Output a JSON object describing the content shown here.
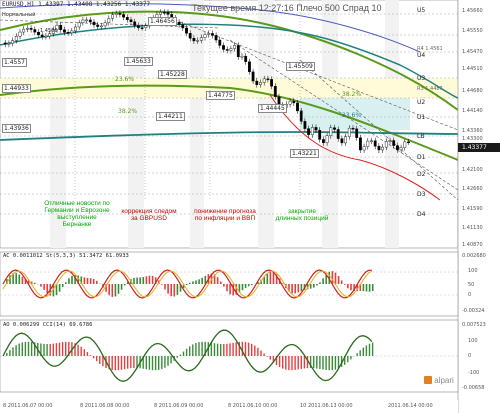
{
  "header": {
    "symbol_line": "EURUSD,H1  1.43397 1.43408 1.43256 1.43377",
    "time_title": "Текущее время 12:27:16 Плечо 500 Спрад 10"
  },
  "left_labels": [
    "Нормальный",
    "1.4566",
    "1.4557",
    "1.44933",
    "1.43936"
  ],
  "chart_boxes": {
    "b1": "1.45633",
    "b2": "1.45228",
    "b3": "1.44775",
    "b4": "1.44445",
    "b5": "1.44211",
    "b6": "1.45509",
    "b7": "1.43221",
    "b8": "1.46456"
  },
  "fib_labels": [
    "23.6%",
    "38.2%",
    "38.2%",
    "23.6%"
  ],
  "levels_right": [
    "U5",
    "R4 1.4561",
    "U4",
    "U3",
    "R3 1.4487",
    "U2",
    "U1",
    "LB",
    "D1",
    "D2",
    "D3",
    "D4"
  ],
  "price_axis": [
    "1.45660",
    "1.45550",
    "1.45470",
    "1.44510",
    "1.44680",
    "1.44140",
    "1.43360",
    "1.43300",
    "1.43377",
    "1.42100",
    "1.42660",
    "1.41590",
    "1.41130",
    "1.40870"
  ],
  "current_price": "1.43377",
  "news": [
    {
      "text": "Отличные новости по Германии и Еврозоне выступление Бернанке",
      "color": "#00aa00"
    },
    {
      "text": "коррекция следом за GBPUSD",
      "color": "#cc0000"
    },
    {
      "text": "понижение прогноза по инфляции и ВВП",
      "color": "#cc0000"
    },
    {
      "text": "закрытие длинных позиций",
      "color": "#00aa00"
    }
  ],
  "ac_panel": {
    "title": "AC 0.0011012  St(5,3,3) 51.3472 61.0933",
    "axis": [
      "100",
      "50",
      "0",
      "-0.00324"
    ],
    "top_value": "0.002680"
  },
  "ao_panel": {
    "title": "AO 0.006299  CCI(14) 69.6786",
    "top_value": "0.007523",
    "axis": [
      "100",
      "0",
      "-100",
      "-0.00658"
    ]
  },
  "time_axis": [
    "8 2011.06.07 00:00",
    "8 2011.06.08 00:00",
    "8 2011.06.09 00:00",
    "8 2011.06.10 00:00",
    "10 2011.06.13 00:00",
    "2011.06.14 00:00"
  ],
  "watermark": "alpari",
  "colors": {
    "bull_candle": "#ffffff",
    "bear_candle": "#000000",
    "ma_green": "#5a9a1a",
    "ma_teal": "#208080",
    "ma_red": "#e02020",
    "ma_blue": "#4a58c0",
    "zone_yellow": "#fffbd8",
    "zone_cyan": "#d8f0f0",
    "vol_red": "#e04040"
  }
}
